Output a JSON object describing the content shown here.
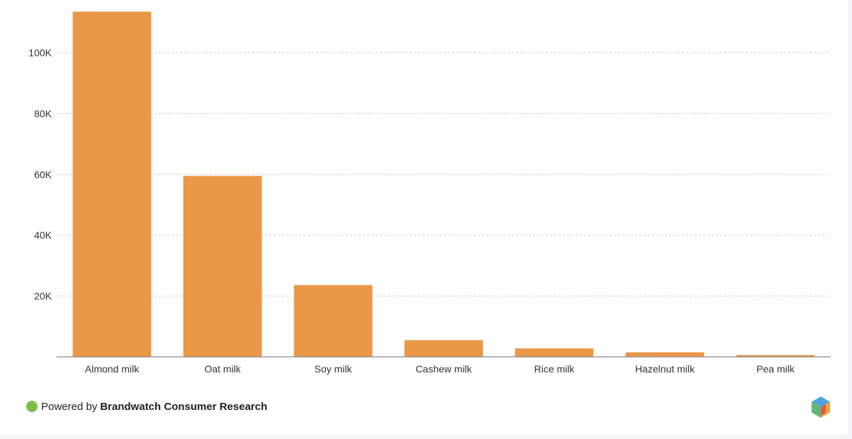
{
  "chart_data": {
    "type": "bar",
    "title": "",
    "xlabel": "",
    "ylabel": "",
    "categories": [
      "Almond milk",
      "Oat milk",
      "Soy milk",
      "Cashew milk",
      "Rice milk",
      "Hazelnut milk",
      "Pea milk"
    ],
    "values": [
      113500,
      59500,
      23600,
      5500,
      2800,
      1500,
      600
    ],
    "ylim": [
      0,
      115000
    ],
    "yticks": [
      20000,
      40000,
      60000,
      80000,
      100000
    ],
    "ytick_labels": [
      "20K",
      "40K",
      "60K",
      "80K",
      "100K"
    ],
    "grid": true,
    "legend": "none",
    "bar_color": "#eb9748"
  },
  "footer": {
    "prefix": "Powered by",
    "brand": "Brandwatch Consumer Research",
    "dot_color": "#7bc043"
  },
  "logo": {
    "icon": "brandwatch-hexagon-icon",
    "colors": [
      "#4fa3dc",
      "#5cb874",
      "#f2a33a",
      "#e8564a"
    ]
  }
}
